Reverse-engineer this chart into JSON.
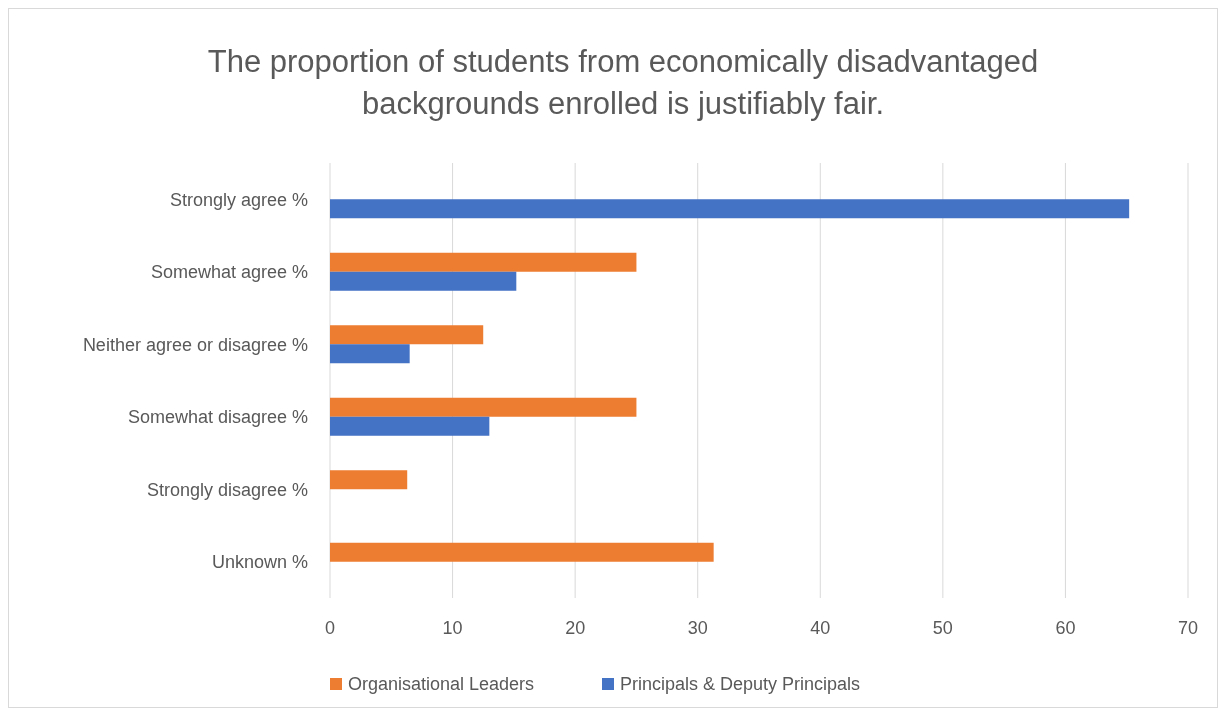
{
  "chart_data": {
    "type": "bar",
    "orientation": "horizontal",
    "title": "The proportion of students from economically disadvantaged backgrounds enrolled is justifiably fair.",
    "categories": [
      "Strongly agree %",
      "Somewhat agree %",
      "Neither agree or disagree %",
      "Somewhat disagree %",
      "Strongly disagree %",
      "Unknown %"
    ],
    "series": [
      {
        "name": "Organisational Leaders",
        "color": "#ed7d31",
        "values": [
          null,
          25,
          12.5,
          25,
          6.3,
          31.3
        ]
      },
      {
        "name": "Principals & Deputy Principals",
        "color": "#4472c4",
        "values": [
          65.2,
          15.2,
          6.5,
          13,
          null,
          null
        ]
      }
    ],
    "xlim": [
      0,
      70
    ],
    "xticks": [
      0,
      10,
      20,
      30,
      40,
      50,
      60,
      70
    ],
    "grid": "x",
    "legend": "bottom"
  }
}
